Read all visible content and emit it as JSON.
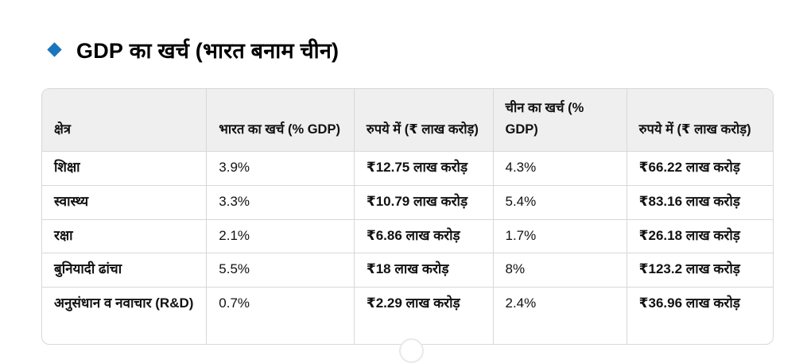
{
  "theme": {
    "accent_blue": "#1b75bc",
    "table_header_bg": "#efefef",
    "table_border": "#d8d8d8",
    "page_bg": "#ffffff",
    "text_color": "#111111"
  },
  "heading": {
    "bullet_icon": "diamond-bullet",
    "title_latin": "GDP",
    "title_rest": " का खर्च (भारत बनाम चीन)"
  },
  "table": {
    "columns": [
      "क्षेत्र",
      "भारत का खर्च (% GDP)",
      "रुपये में (₹ लाख करोड़)",
      "चीन का खर्च (% GDP)",
      "रुपये में (₹ लाख करोड़)"
    ],
    "rows": [
      [
        "शिक्षा",
        "3.9%",
        "₹12.75 लाख करोड़",
        "4.3%",
        "₹66.22 लाख करोड़"
      ],
      [
        "स्वास्थ्य",
        "3.3%",
        "₹10.79 लाख करोड़",
        "5.4%",
        "₹83.16 लाख करोड़"
      ],
      [
        "रक्षा",
        "2.1%",
        "₹6.86 लाख करोड़",
        "1.7%",
        "₹26.18 लाख करोड़"
      ],
      [
        "बुनियादी ढांचा",
        "5.5%",
        "₹18 लाख करोड़",
        "8%",
        "₹123.2 लाख करोड़"
      ],
      [
        "अनुसंधान व नवाचार (R&D)",
        "0.7%",
        "₹2.29 लाख करोड़",
        "2.4%",
        "₹36.96 लाख करोड़"
      ]
    ]
  },
  "chart_data": {
    "type": "table",
    "title": "GDP का खर्च (भारत बनाम चीन)",
    "columns": [
      "क्षेत्र",
      "भारत का खर्च (% GDP)",
      "रुपये में (₹ लाख करोड़)",
      "चीन का खर्च (% GDP)",
      "रुपये में (₹ लाख करोड़)"
    ],
    "rows": [
      [
        "शिक्षा",
        "3.9%",
        "₹12.75 लाख करोड़",
        "4.3%",
        "₹66.22 लाख करोड़"
      ],
      [
        "स्वास्थ्य",
        "3.3%",
        "₹10.79 लाख करोड़",
        "5.4%",
        "₹83.16 लाख करोड़"
      ],
      [
        "रक्षा",
        "2.1%",
        "₹6.86 लाख करोड़",
        "1.7%",
        "₹26.18 लाख करोड़"
      ],
      [
        "बुनियादी ढांचा",
        "5.5%",
        "₹18 लाख करोड़",
        "8%",
        "₹123.2 लाख करोड़"
      ],
      [
        "अनुसंधान व नवाचार (R&D)",
        "0.7%",
        "₹2.29 लाख करोड़",
        "2.4%",
        "₹36.96 लाख करोड़"
      ]
    ]
  }
}
